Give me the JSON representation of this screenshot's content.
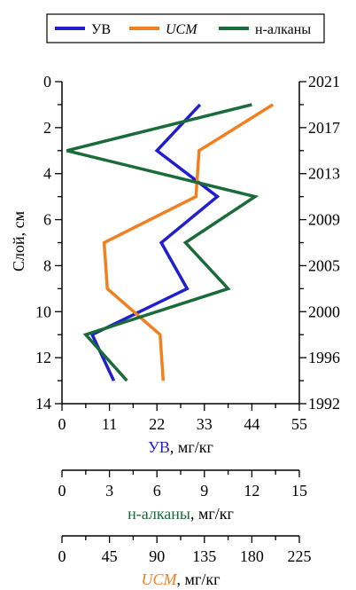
{
  "chart_data": {
    "type": "line",
    "legend": {
      "placement": "top",
      "entries": [
        {
          "label": "УВ",
          "color": "#1f1fd0",
          "italic": false
        },
        {
          "label": "UCM",
          "color": "#f08020",
          "italic": true
        },
        {
          "label": "н-алканы",
          "color": "#1a6b3a",
          "italic": false
        }
      ]
    },
    "y_axis": {
      "label": "Слой, см",
      "range": [
        0,
        14
      ],
      "inverted": true,
      "ticks": [
        "0",
        "2",
        "4",
        "6",
        "8",
        "10",
        "12",
        "14"
      ]
    },
    "right_axis": {
      "ticks": [
        {
          "label": "2021",
          "depth": 0
        },
        {
          "label": "2017",
          "depth": 2
        },
        {
          "label": "2013",
          "depth": 4
        },
        {
          "label": "2009",
          "depth": 6
        },
        {
          "label": "2005",
          "depth": 8
        },
        {
          "label": "2000",
          "depth": 10
        },
        {
          "label": "1996",
          "depth": 12
        },
        {
          "label": "1992",
          "depth": 14
        }
      ]
    },
    "x_axes": [
      {
        "key": "uv",
        "label_main": "УВ",
        "label_unit": ", мг/кг",
        "label_color": "#1f1fd0",
        "italic": false,
        "range": [
          0,
          55
        ],
        "ticks": [
          "0",
          "11",
          "22",
          "33",
          "44",
          "55"
        ]
      },
      {
        "key": "alk",
        "label_main": "н-алканы",
        "label_unit": ", мг/кг",
        "label_color": "#1a6b3a",
        "italic": false,
        "range": [
          0,
          15
        ],
        "ticks": [
          "0",
          "3",
          "6",
          "9",
          "12",
          "15"
        ]
      },
      {
        "key": "ucm",
        "label_main": "UCM",
        "label_unit": ", мг/кг",
        "label_color": "#f08020",
        "italic": true,
        "range": [
          0,
          225
        ],
        "ticks": [
          "0",
          "45",
          "90",
          "135",
          "180",
          "225"
        ]
      }
    ],
    "series": [
      {
        "name": "УВ",
        "axis": "uv",
        "color": "#1f1fd0",
        "points": [
          [
            1,
            32
          ],
          [
            3,
            22
          ],
          [
            5,
            36
          ],
          [
            7,
            23
          ],
          [
            9,
            29
          ],
          [
            11,
            7
          ],
          [
            13,
            12
          ]
        ]
      },
      {
        "name": "UCM",
        "axis": "ucm",
        "color": "#f08020",
        "points": [
          [
            1,
            200
          ],
          [
            3,
            130
          ],
          [
            5,
            127
          ],
          [
            7,
            40
          ],
          [
            9,
            43
          ],
          [
            11,
            93
          ],
          [
            13,
            96
          ]
        ]
      },
      {
        "name": "н-алканы",
        "axis": "alk",
        "color": "#1a6b3a",
        "points": [
          [
            1,
            12
          ],
          [
            3,
            0.3
          ],
          [
            5,
            12.2
          ],
          [
            7,
            7.8
          ],
          [
            9,
            10.5
          ],
          [
            11,
            1.5
          ],
          [
            13,
            4.1
          ]
        ]
      }
    ]
  }
}
